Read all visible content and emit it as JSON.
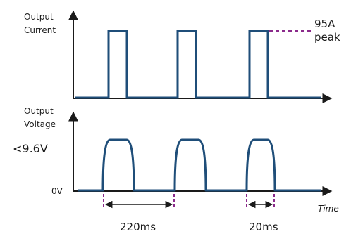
{
  "labels": {
    "output_current_line1": "Output",
    "output_current_line2": "Current",
    "output_voltage_line1": "Output",
    "output_voltage_line2": "Voltage",
    "voltage_level": "<9.6V",
    "zero_volts": "0V",
    "peak_value": "95A",
    "peak_word": "peak",
    "time_axis": "Time",
    "period": "220ms",
    "pulse_width": "20ms"
  },
  "colors": {
    "signal": "#1f4e79",
    "axis": "#1a1a1a",
    "marker": "#8b2a8b"
  }
}
